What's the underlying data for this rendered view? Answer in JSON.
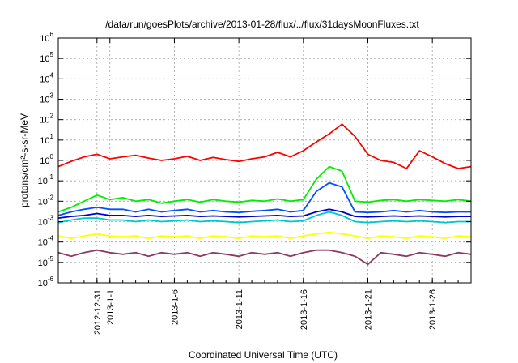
{
  "chart_data": {
    "type": "line",
    "title": "/data/run/goesPlots/archive/2013-01-28/flux/../flux/31daysMoonFluxes.txt",
    "xlabel": "Coordinated Universal Time (UTC)",
    "ylabel": "protons/cm²-s-sr-MeV",
    "yscale": "log",
    "ylim": [
      1e-06,
      1000000.0
    ],
    "xlim": [
      "2012-12-28",
      "2013-01-29"
    ],
    "grid": true,
    "legend": "none",
    "x_ticks": [
      {
        "date": "2012-12-31",
        "label": "2012-12-31"
      },
      {
        "date": "2013-01-01",
        "label": "2013-1-1"
      },
      {
        "date": "2013-01-06",
        "label": "2013-1-6"
      },
      {
        "date": "2013-01-11",
        "label": "2013-1-11"
      },
      {
        "date": "2013-01-16",
        "label": "2013-1-16"
      },
      {
        "date": "2013-01-21",
        "label": "2013-1-21"
      },
      {
        "date": "2013-01-26",
        "label": "2013-1-26"
      }
    ],
    "y_ticks": [
      {
        "value": 1e-06,
        "base": "10",
        "exp": "-6"
      },
      {
        "value": 1e-05,
        "base": "10",
        "exp": "-5"
      },
      {
        "value": 0.0001,
        "base": "10",
        "exp": "-4"
      },
      {
        "value": 0.001,
        "base": "10",
        "exp": "-3"
      },
      {
        "value": 0.01,
        "base": "10",
        "exp": "-2"
      },
      {
        "value": 0.1,
        "base": "10",
        "exp": "-1"
      },
      {
        "value": 1,
        "base": "10",
        "exp": "0"
      },
      {
        "value": 10,
        "base": "10",
        "exp": "1"
      },
      {
        "value": 100,
        "base": "10",
        "exp": "2"
      },
      {
        "value": 1000,
        "base": "10",
        "exp": "3"
      },
      {
        "value": 10000,
        "base": "10",
        "exp": "4"
      },
      {
        "value": 100000,
        "base": "10",
        "exp": "5"
      },
      {
        "value": 1000000,
        "base": "10",
        "exp": "6"
      }
    ],
    "series": [
      {
        "color": "#ff0000",
        "values": [
          [
            "2012-12-28",
            0.5
          ],
          [
            "2012-12-29",
            0.9
          ],
          [
            "2012-12-30",
            1.5
          ],
          [
            "2012-12-31",
            2.0
          ],
          [
            "2013-01-01",
            1.2
          ],
          [
            "2013-01-02",
            1.5
          ],
          [
            "2013-01-03",
            1.8
          ],
          [
            "2013-01-04",
            1.3
          ],
          [
            "2013-01-05",
            1.0
          ],
          [
            "2013-01-06",
            1.2
          ],
          [
            "2013-01-07",
            1.6
          ],
          [
            "2013-01-08",
            1.0
          ],
          [
            "2013-01-09",
            1.4
          ],
          [
            "2013-01-10",
            1.1
          ],
          [
            "2013-01-11",
            0.9
          ],
          [
            "2013-01-12",
            1.2
          ],
          [
            "2013-01-13",
            1.5
          ],
          [
            "2013-01-14",
            2.5
          ],
          [
            "2013-01-15",
            1.5
          ],
          [
            "2013-01-16",
            3.0
          ],
          [
            "2013-01-17",
            8.0
          ],
          [
            "2013-01-18",
            20.0
          ],
          [
            "2013-01-19",
            60.0
          ],
          [
            "2013-01-20",
            15.0
          ],
          [
            "2013-01-21",
            2.0
          ],
          [
            "2013-01-22",
            1.0
          ],
          [
            "2013-01-23",
            0.8
          ],
          [
            "2013-01-24",
            0.4
          ],
          [
            "2013-01-25",
            3.0
          ],
          [
            "2013-01-26",
            1.5
          ],
          [
            "2013-01-27",
            0.7
          ],
          [
            "2013-01-28",
            0.4
          ],
          [
            "2013-01-29",
            0.5
          ]
        ]
      },
      {
        "color": "#00ee00",
        "values": [
          [
            "2012-12-28",
            0.003
          ],
          [
            "2012-12-29",
            0.005
          ],
          [
            "2012-12-30",
            0.01
          ],
          [
            "2012-12-31",
            0.02
          ],
          [
            "2013-01-01",
            0.012
          ],
          [
            "2013-01-02",
            0.015
          ],
          [
            "2013-01-03",
            0.01
          ],
          [
            "2013-01-04",
            0.012
          ],
          [
            "2013-01-05",
            0.008
          ],
          [
            "2013-01-06",
            0.01
          ],
          [
            "2013-01-07",
            0.012
          ],
          [
            "2013-01-08",
            0.009
          ],
          [
            "2013-01-09",
            0.012
          ],
          [
            "2013-01-10",
            0.01
          ],
          [
            "2013-01-11",
            0.009
          ],
          [
            "2013-01-12",
            0.011
          ],
          [
            "2013-01-13",
            0.01
          ],
          [
            "2013-01-14",
            0.013
          ],
          [
            "2013-01-15",
            0.01
          ],
          [
            "2013-01-16",
            0.012
          ],
          [
            "2013-01-17",
            0.12
          ],
          [
            "2013-01-18",
            0.5
          ],
          [
            "2013-01-19",
            0.3
          ],
          [
            "2013-01-20",
            0.01
          ],
          [
            "2013-01-21",
            0.009
          ],
          [
            "2013-01-22",
            0.011
          ],
          [
            "2013-01-23",
            0.012
          ],
          [
            "2013-01-24",
            0.01
          ],
          [
            "2013-01-25",
            0.012
          ],
          [
            "2013-01-26",
            0.011
          ],
          [
            "2013-01-27",
            0.01
          ],
          [
            "2013-01-28",
            0.012
          ],
          [
            "2013-01-29",
            0.01
          ]
        ]
      },
      {
        "color": "#00c8c8",
        "values": [
          [
            "2012-12-28",
            0.0009
          ],
          [
            "2012-12-29",
            0.0012
          ],
          [
            "2012-12-30",
            0.0015
          ],
          [
            "2012-12-31",
            0.0015
          ],
          [
            "2013-01-01",
            0.0012
          ],
          [
            "2013-01-02",
            0.0012
          ],
          [
            "2013-01-03",
            0.001
          ],
          [
            "2013-01-04",
            0.0012
          ],
          [
            "2013-01-05",
            0.001
          ],
          [
            "2013-01-06",
            0.0011
          ],
          [
            "2013-01-07",
            0.0012
          ],
          [
            "2013-01-08",
            0.001
          ],
          [
            "2013-01-09",
            0.0011
          ],
          [
            "2013-01-10",
            0.001
          ],
          [
            "2013-01-11",
            0.0009
          ],
          [
            "2013-01-12",
            0.001
          ],
          [
            "2013-01-13",
            0.0011
          ],
          [
            "2013-01-14",
            0.0012
          ],
          [
            "2013-01-15",
            0.001
          ],
          [
            "2013-01-16",
            0.0011
          ],
          [
            "2013-01-17",
            0.002
          ],
          [
            "2013-01-18",
            0.003
          ],
          [
            "2013-01-19",
            0.002
          ],
          [
            "2013-01-20",
            0.001
          ],
          [
            "2013-01-21",
            0.0009
          ],
          [
            "2013-01-22",
            0.001
          ],
          [
            "2013-01-23",
            0.0011
          ],
          [
            "2013-01-24",
            0.001
          ],
          [
            "2013-01-25",
            0.0011
          ],
          [
            "2013-01-26",
            0.001
          ],
          [
            "2013-01-27",
            0.0009
          ],
          [
            "2013-01-28",
            0.001
          ],
          [
            "2013-01-29",
            0.001
          ]
        ]
      },
      {
        "color": "#0050ff",
        "values": [
          [
            "2012-12-28",
            0.002
          ],
          [
            "2012-12-29",
            0.003
          ],
          [
            "2012-12-30",
            0.004
          ],
          [
            "2012-12-31",
            0.005
          ],
          [
            "2013-01-01",
            0.004
          ],
          [
            "2013-01-02",
            0.004
          ],
          [
            "2013-01-03",
            0.003
          ],
          [
            "2013-01-04",
            0.004
          ],
          [
            "2013-01-05",
            0.003
          ],
          [
            "2013-01-06",
            0.0035
          ],
          [
            "2013-01-07",
            0.004
          ],
          [
            "2013-01-08",
            0.003
          ],
          [
            "2013-01-09",
            0.0035
          ],
          [
            "2013-01-10",
            0.003
          ],
          [
            "2013-01-11",
            0.0028
          ],
          [
            "2013-01-12",
            0.0032
          ],
          [
            "2013-01-13",
            0.0035
          ],
          [
            "2013-01-14",
            0.004
          ],
          [
            "2013-01-15",
            0.003
          ],
          [
            "2013-01-16",
            0.0035
          ],
          [
            "2013-01-17",
            0.03
          ],
          [
            "2013-01-18",
            0.08
          ],
          [
            "2013-01-19",
            0.05
          ],
          [
            "2013-01-20",
            0.003
          ],
          [
            "2013-01-21",
            0.0028
          ],
          [
            "2013-01-22",
            0.003
          ],
          [
            "2013-01-23",
            0.0035
          ],
          [
            "2013-01-24",
            0.003
          ],
          [
            "2013-01-25",
            0.0035
          ],
          [
            "2013-01-26",
            0.003
          ],
          [
            "2013-01-27",
            0.0028
          ],
          [
            "2013-01-28",
            0.003
          ],
          [
            "2013-01-29",
            0.003
          ]
        ]
      },
      {
        "color": "#0000cc",
        "values": [
          [
            "2012-12-28",
            0.0015
          ],
          [
            "2012-12-29",
            0.0018
          ],
          [
            "2012-12-30",
            0.002
          ],
          [
            "2012-12-31",
            0.0025
          ],
          [
            "2013-01-01",
            0.002
          ],
          [
            "2013-01-02",
            0.002
          ],
          [
            "2013-01-03",
            0.0018
          ],
          [
            "2013-01-04",
            0.002
          ],
          [
            "2013-01-05",
            0.0018
          ],
          [
            "2013-01-06",
            0.0019
          ],
          [
            "2013-01-07",
            0.002
          ],
          [
            "2013-01-08",
            0.0018
          ],
          [
            "2013-01-09",
            0.0019
          ],
          [
            "2013-01-10",
            0.0018
          ],
          [
            "2013-01-11",
            0.0017
          ],
          [
            "2013-01-12",
            0.0018
          ],
          [
            "2013-01-13",
            0.0019
          ],
          [
            "2013-01-14",
            0.002
          ],
          [
            "2013-01-15",
            0.0018
          ],
          [
            "2013-01-16",
            0.0019
          ],
          [
            "2013-01-17",
            0.003
          ],
          [
            "2013-01-18",
            0.004
          ],
          [
            "2013-01-19",
            0.003
          ],
          [
            "2013-01-20",
            0.0018
          ],
          [
            "2013-01-21",
            0.0017
          ],
          [
            "2013-01-22",
            0.0018
          ],
          [
            "2013-01-23",
            0.0019
          ],
          [
            "2013-01-24",
            0.0018
          ],
          [
            "2013-01-25",
            0.0019
          ],
          [
            "2013-01-26",
            0.0018
          ],
          [
            "2013-01-27",
            0.0017
          ],
          [
            "2013-01-28",
            0.0018
          ],
          [
            "2013-01-29",
            0.0018
          ]
        ]
      },
      {
        "color": "#ffff00",
        "values": [
          [
            "2012-12-28",
            0.0002
          ],
          [
            "2012-12-29",
            0.00015
          ],
          [
            "2012-12-30",
            0.0002
          ],
          [
            "2012-12-31",
            0.00025
          ],
          [
            "2013-01-01",
            0.0002
          ],
          [
            "2013-01-02",
            0.00018
          ],
          [
            "2013-01-03",
            0.0002
          ],
          [
            "2013-01-04",
            0.00015
          ],
          [
            "2013-01-05",
            0.0002
          ],
          [
            "2013-01-06",
            0.00018
          ],
          [
            "2013-01-07",
            0.0002
          ],
          [
            "2013-01-08",
            0.00015
          ],
          [
            "2013-01-09",
            0.0002
          ],
          [
            "2013-01-10",
            0.00018
          ],
          [
            "2013-01-11",
            0.00015
          ],
          [
            "2013-01-12",
            0.0002
          ],
          [
            "2013-01-13",
            0.00018
          ],
          [
            "2013-01-14",
            0.0002
          ],
          [
            "2013-01-15",
            0.00015
          ],
          [
            "2013-01-16",
            0.0002
          ],
          [
            "2013-01-17",
            0.00025
          ],
          [
            "2013-01-18",
            0.0003
          ],
          [
            "2013-01-19",
            0.00025
          ],
          [
            "2013-01-20",
            0.0002
          ],
          [
            "2013-01-21",
            0.00015
          ],
          [
            "2013-01-22",
            0.0002
          ],
          [
            "2013-01-23",
            0.00018
          ],
          [
            "2013-01-24",
            0.00015
          ],
          [
            "2013-01-25",
            0.0002
          ],
          [
            "2013-01-26",
            0.00018
          ],
          [
            "2013-01-27",
            0.00015
          ],
          [
            "2013-01-28",
            0.0002
          ],
          [
            "2013-01-29",
            0.00018
          ]
        ]
      },
      {
        "color": "#8b3a62",
        "values": [
          [
            "2012-12-28",
            3e-05
          ],
          [
            "2012-12-29",
            2e-05
          ],
          [
            "2012-12-30",
            3e-05
          ],
          [
            "2012-12-31",
            4e-05
          ],
          [
            "2013-01-01",
            3e-05
          ],
          [
            "2013-01-02",
            2.5e-05
          ],
          [
            "2013-01-03",
            3e-05
          ],
          [
            "2013-01-04",
            2e-05
          ],
          [
            "2013-01-05",
            3e-05
          ],
          [
            "2013-01-06",
            2.5e-05
          ],
          [
            "2013-01-07",
            3e-05
          ],
          [
            "2013-01-08",
            2e-05
          ],
          [
            "2013-01-09",
            3e-05
          ],
          [
            "2013-01-10",
            2.5e-05
          ],
          [
            "2013-01-11",
            2e-05
          ],
          [
            "2013-01-12",
            3e-05
          ],
          [
            "2013-01-13",
            2.5e-05
          ],
          [
            "2013-01-14",
            3e-05
          ],
          [
            "2013-01-15",
            2e-05
          ],
          [
            "2013-01-16",
            3e-05
          ],
          [
            "2013-01-17",
            4e-05
          ],
          [
            "2013-01-18",
            4e-05
          ],
          [
            "2013-01-19",
            3e-05
          ],
          [
            "2013-01-20",
            2e-05
          ],
          [
            "2013-01-21",
            8e-06
          ],
          [
            "2013-01-22",
            3e-05
          ],
          [
            "2013-01-23",
            2.5e-05
          ],
          [
            "2013-01-24",
            2e-05
          ],
          [
            "2013-01-25",
            3e-05
          ],
          [
            "2013-01-26",
            2.5e-05
          ],
          [
            "2013-01-27",
            2e-05
          ],
          [
            "2013-01-28",
            3e-05
          ],
          [
            "2013-01-29",
            2.5e-05
          ]
        ]
      }
    ]
  }
}
